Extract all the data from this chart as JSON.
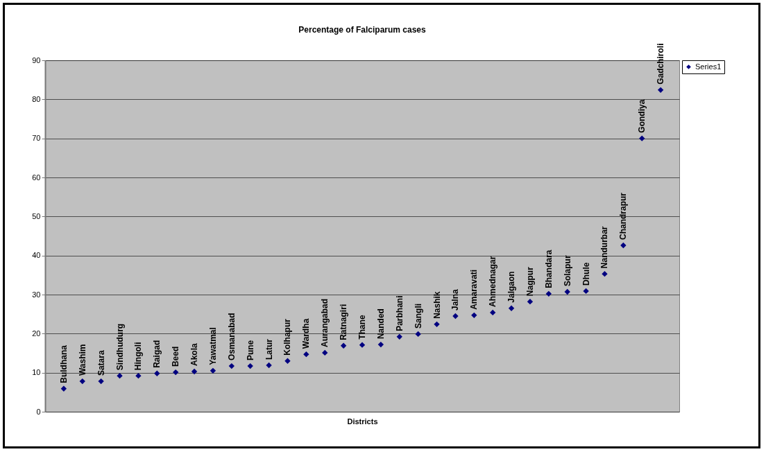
{
  "chart_data": {
    "type": "scatter",
    "title": "Percentage of Falciparum cases",
    "xlabel": "Districts",
    "categories": [
      "Buldhana",
      "Washim",
      "Satara",
      "Sindhudurg",
      "Hingoli",
      "Raigad",
      "Beed",
      "Akola",
      "Yawatmal",
      "Osmanabad",
      "Pune",
      "Latur",
      "Kolhapur",
      "Wardha",
      "Aurangabad",
      "Ratnagiri",
      "Thane",
      "Nanded",
      "Parbhani",
      "Sangli",
      "Nashik",
      "Jalna",
      "Amaravati",
      "Ahmednagar",
      "Jalgaon",
      "Nagpur",
      "Bhandara",
      "Solapur",
      "Dhule",
      "Nandurbar",
      "Chandrapur",
      "Gondiya",
      "Gadchiroli"
    ],
    "series": [
      {
        "name": "Series1",
        "color": "#000080",
        "values": [
          5.9,
          7.8,
          7.8,
          9.2,
          9.2,
          9.8,
          10.1,
          10.3,
          10.5,
          11.7,
          11.7,
          11.9,
          13.0,
          14.7,
          15.1,
          16.9,
          17.1,
          17.2,
          19.2,
          19.9,
          22.4,
          24.5,
          24.7,
          25.4,
          26.5,
          28.2,
          30.2,
          30.7,
          30.9,
          35.3,
          42.6,
          70.0,
          82.4
        ]
      }
    ],
    "ylim": [
      0,
      90
    ],
    "yticks": [
      0,
      10,
      20,
      30,
      40,
      50,
      60,
      70,
      80,
      90
    ],
    "grid": "y",
    "legend": "right",
    "marker": "diamond",
    "tick_labels": "y"
  }
}
